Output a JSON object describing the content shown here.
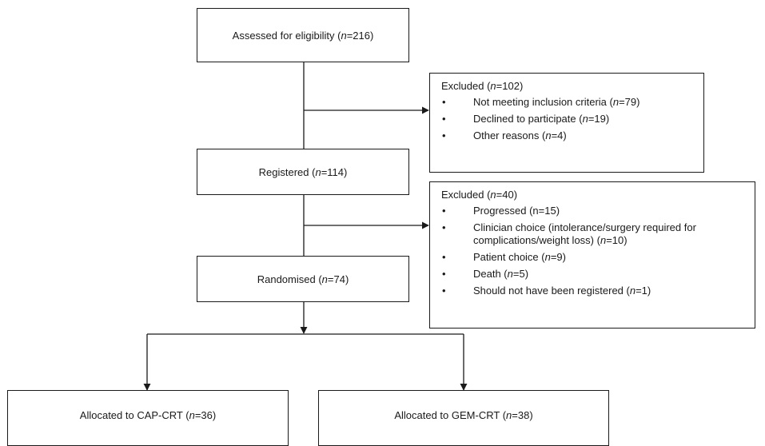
{
  "assessed": {
    "label": "Assessed for eligibility (",
    "n_label": "n",
    "value": "=216)"
  },
  "excluded1": {
    "heading": "Excluded (",
    "n_label": "n",
    "value": "=102)",
    "items": [
      {
        "text": "Not meeting inclusion criteria (",
        "n_label": "n",
        "value": "=79)"
      },
      {
        "text": "Declined to participate (",
        "n_label": "n",
        "value": "=19)"
      },
      {
        "text": "Other reasons (",
        "n_label": "n",
        "value": "=4)"
      }
    ]
  },
  "registered": {
    "label": "Registered (",
    "n_label": "n",
    "value": "=114)"
  },
  "excluded2": {
    "heading": "Excluded (",
    "n_label": "n",
    "value": "=40)",
    "items": [
      {
        "text": "Progressed (n=15)"
      },
      {
        "text": "Clinician choice (intolerance/surgery required for complications/weight loss) (",
        "n_label": "n",
        "value": "=10)"
      },
      {
        "text": "Patient choice (",
        "n_label": "n",
        "value": "=9)"
      },
      {
        "text": "Death (",
        "n_label": "n",
        "value": "=5)"
      },
      {
        "text": "Should not have been registered (",
        "n_label": "n",
        "value": "=1)"
      }
    ]
  },
  "randomised": {
    "label": "Randomised (",
    "n_label": "n",
    "value": "=74)"
  },
  "arm_cap": {
    "label": "Allocated to CAP-CRT (",
    "n_label": "n",
    "value": "=36)"
  },
  "arm_gem": {
    "label": "Allocated to GEM-CRT (",
    "n_label": "n",
    "value": "=38)"
  },
  "bullet_glyph": "•",
  "line_color": "#1a1a1a"
}
